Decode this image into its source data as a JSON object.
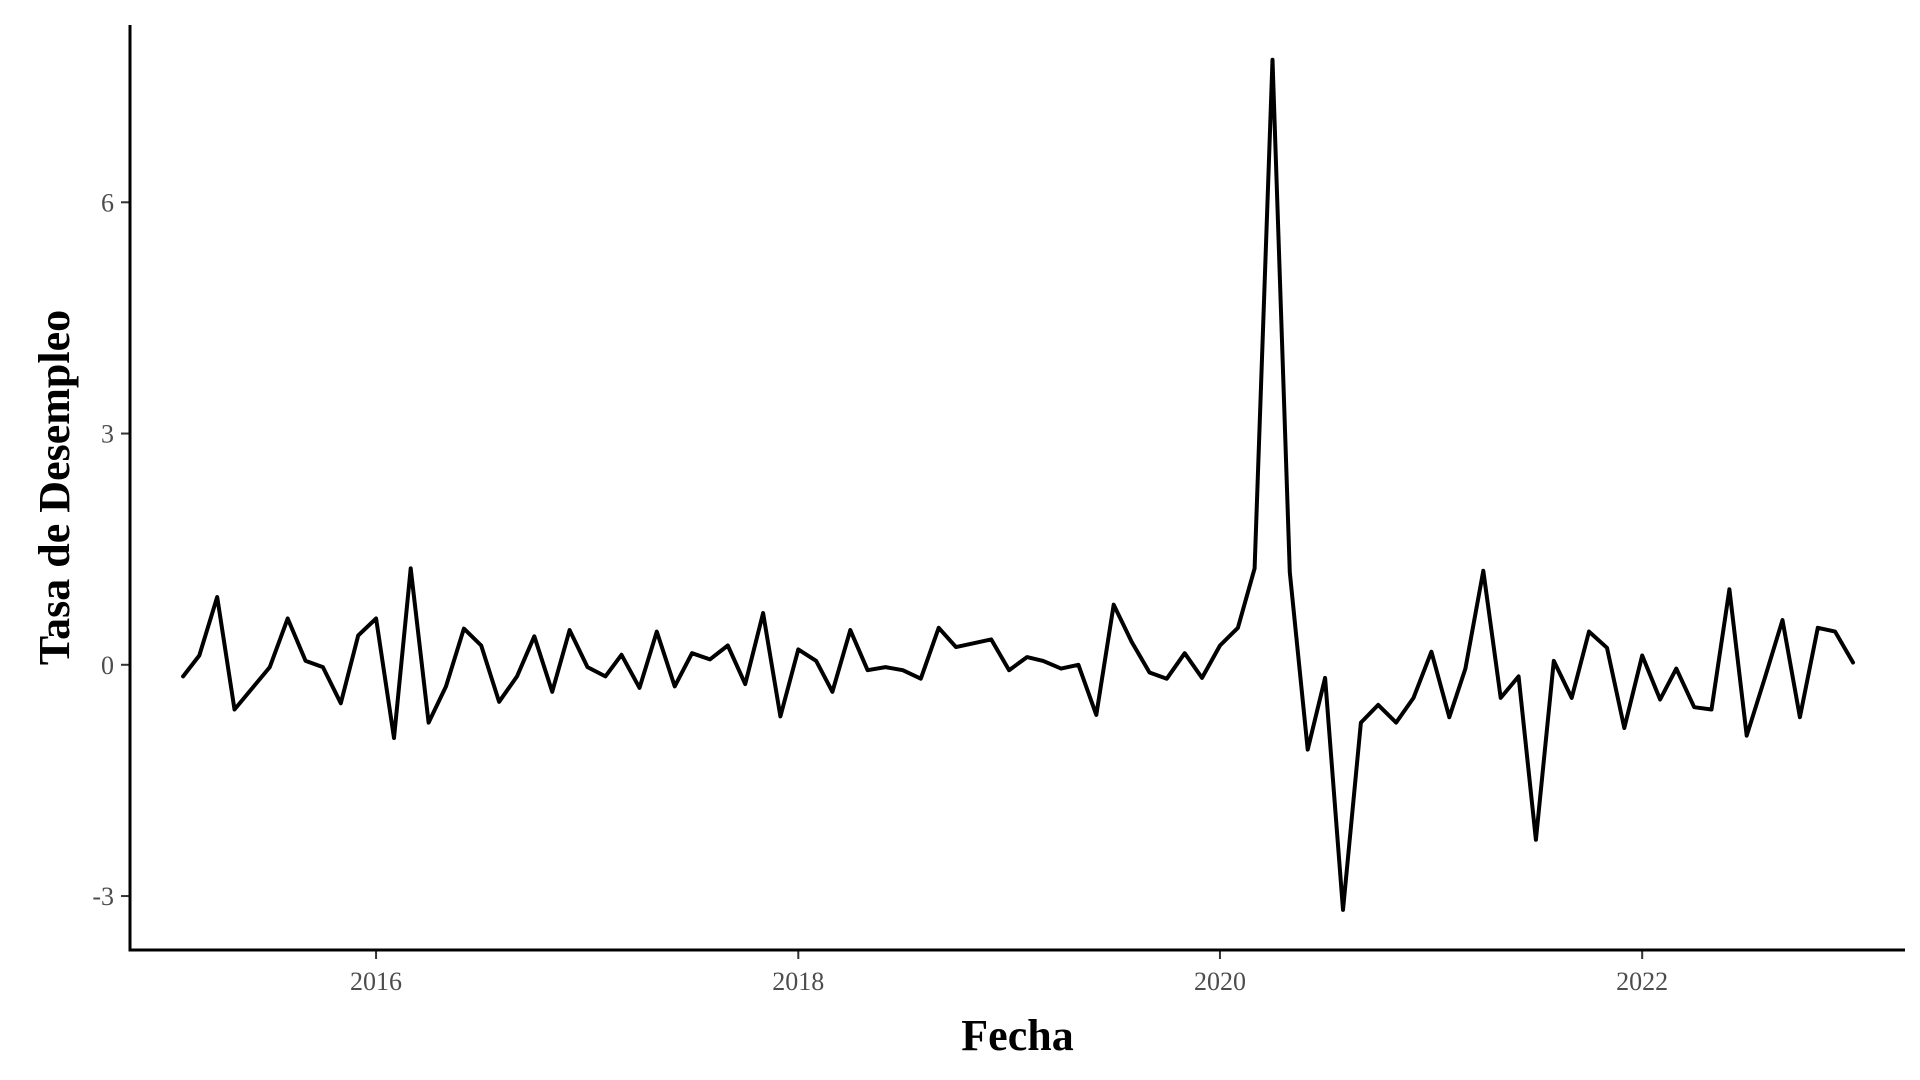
{
  "chart_data": {
    "type": "line",
    "title": "",
    "xlabel": "Fecha",
    "ylabel": "Tasa de Desempleo",
    "x_ticks": [
      {
        "value": "2016-01-01",
        "label": "2016"
      },
      {
        "value": "2018-01-01",
        "label": "2018"
      },
      {
        "value": "2020-01-01",
        "label": "2020"
      },
      {
        "value": "2022-01-01",
        "label": "2022"
      }
    ],
    "y_ticks": [
      {
        "value": -3,
        "label": "-3"
      },
      {
        "value": 0,
        "label": "0"
      },
      {
        "value": 3,
        "label": "3"
      },
      {
        "value": 6,
        "label": "6"
      }
    ],
    "xlim": [
      "2014-11-01",
      "2023-04-01"
    ],
    "ylim": [
      -3.7,
      8.3
    ],
    "grid": false,
    "legend": "none",
    "line_color": "#000000",
    "series": [
      {
        "x": [
          "2015-02-01",
          "2015-03-01",
          "2015-04-01",
          "2015-05-01",
          "2015-06-01",
          "2015-07-01",
          "2015-08-01",
          "2015-09-01",
          "2015-10-01",
          "2015-11-01",
          "2015-12-01",
          "2016-01-01",
          "2016-02-01",
          "2016-03-01",
          "2016-04-01",
          "2016-05-01",
          "2016-06-01",
          "2016-07-01",
          "2016-08-01",
          "2016-09-01",
          "2016-10-01",
          "2016-11-01",
          "2016-12-01",
          "2017-01-01",
          "2017-02-01",
          "2017-03-01",
          "2017-04-01",
          "2017-05-01",
          "2017-06-01",
          "2017-07-01",
          "2017-08-01",
          "2017-09-01",
          "2017-10-01",
          "2017-11-01",
          "2017-12-01",
          "2018-01-01",
          "2018-02-01",
          "2018-03-01",
          "2018-04-01",
          "2018-05-01",
          "2018-06-01",
          "2018-07-01",
          "2018-08-01",
          "2018-09-01",
          "2018-10-01",
          "2018-11-01",
          "2018-12-01",
          "2019-01-01",
          "2019-02-01",
          "2019-03-01",
          "2019-04-01",
          "2019-05-01",
          "2019-06-01",
          "2019-07-01",
          "2019-08-01",
          "2019-09-01",
          "2019-10-01",
          "2019-11-01",
          "2019-12-01",
          "2020-01-01",
          "2020-02-01",
          "2020-03-01",
          "2020-04-01",
          "2020-05-01",
          "2020-06-01",
          "2020-07-01",
          "2020-08-01",
          "2020-09-01",
          "2020-10-01",
          "2020-11-01",
          "2020-12-01",
          "2021-01-01",
          "2021-02-01",
          "2021-03-01",
          "2021-04-01",
          "2021-05-01",
          "2021-06-01",
          "2021-07-01",
          "2021-08-01",
          "2021-09-01",
          "2021-10-01",
          "2021-11-01",
          "2021-12-01",
          "2022-01-01",
          "2022-02-01",
          "2022-03-01",
          "2022-04-01",
          "2022-05-01",
          "2022-06-01",
          "2022-07-01",
          "2022-08-01",
          "2022-09-01",
          "2022-10-01",
          "2022-11-01",
          "2022-12-01",
          "2023-01-01"
        ],
        "y": [
          -0.15,
          0.12,
          0.88,
          -0.58,
          -0.3,
          -0.03,
          0.6,
          0.05,
          -0.03,
          -0.5,
          0.38,
          0.6,
          -0.95,
          1.25,
          -0.75,
          -0.28,
          0.47,
          0.25,
          -0.48,
          -0.15,
          0.37,
          -0.35,
          0.45,
          -0.03,
          -0.15,
          0.13,
          -0.3,
          0.43,
          -0.28,
          0.15,
          0.07,
          0.25,
          -0.25,
          0.67,
          -0.67,
          0.2,
          0.05,
          -0.35,
          0.45,
          -0.07,
          -0.03,
          -0.07,
          -0.18,
          0.48,
          0.23,
          0.28,
          0.33,
          -0.07,
          0.1,
          0.05,
          -0.05,
          0.0,
          -0.65,
          0.78,
          0.3,
          -0.1,
          -0.18,
          0.15,
          -0.17,
          0.25,
          0.48,
          1.25,
          7.85,
          1.2,
          -1.1,
          -0.17,
          -3.18,
          -0.75,
          -0.52,
          -0.75,
          -0.43,
          0.17,
          -0.68,
          -0.05,
          1.22,
          -0.43,
          -0.15,
          -2.27,
          0.05,
          -0.43,
          0.43,
          0.22,
          -0.82,
          0.12,
          -0.45,
          -0.05,
          -0.55,
          -0.58,
          0.98,
          -0.92,
          -0.18,
          0.58,
          -0.68,
          0.48,
          0.43,
          0.03
        ]
      }
    ]
  }
}
